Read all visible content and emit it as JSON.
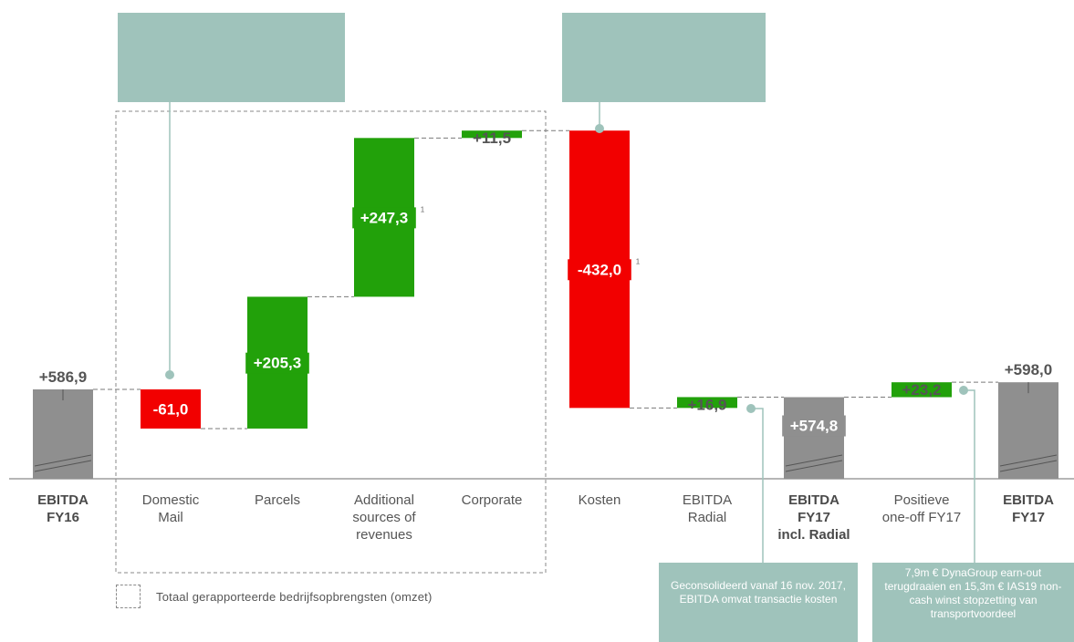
{
  "chart_data": {
    "type": "waterfall",
    "categories": [
      "EBITDA FY16",
      "Domestic Mail",
      "Parcels",
      "Additional sources of revenues",
      "Corporate",
      "Kosten",
      "EBITDA Radial",
      "EBITDA FY17 incl. Radial",
      "Positieve one-off FY17",
      "EBITDA FY17"
    ],
    "bars": [
      {
        "category": "EBITDA FY16",
        "label": "+586,9",
        "kind": "total",
        "start": 0,
        "end": 586.9
      },
      {
        "category": "Domestic Mail",
        "label": "-61,0",
        "kind": "decrease",
        "start": 586.9,
        "end": 525.9
      },
      {
        "category": "Parcels",
        "label": "+205,3",
        "kind": "increase",
        "start": 525.9,
        "end": 731.2
      },
      {
        "category": "Additional sources of revenues",
        "label": "+247,3",
        "footnote": "1",
        "kind": "increase",
        "start": 731.2,
        "end": 978.5
      },
      {
        "category": "Corporate",
        "label": "+11,5",
        "kind": "increase",
        "start": 978.5,
        "end": 990.0
      },
      {
        "category": "Kosten",
        "label": "-432,0",
        "footnote": "1",
        "kind": "decrease",
        "start": 990.0,
        "end": 558.0
      },
      {
        "category": "EBITDA Radial",
        "label": "+16,9",
        "kind": "increase",
        "start": 558.0,
        "end": 574.9
      },
      {
        "category": "EBITDA FY17 incl. Radial",
        "label": "+574,8",
        "kind": "total",
        "start": 0,
        "end": 574.8
      },
      {
        "category": "Positieve one-off FY17",
        "label": "+23,2",
        "kind": "increase",
        "start": 574.8,
        "end": 598.0
      },
      {
        "category": "EBITDA FY17",
        "label": "+598,0",
        "kind": "total",
        "start": 0,
        "end": 598.0
      }
    ],
    "colors": {
      "increase": "#22a10a",
      "decrease": "#f20000",
      "total": "#8f8f8f",
      "note": "#9fc3bb"
    }
  },
  "axis_labels": [
    {
      "lines": [
        "EBITDA",
        "FY16"
      ],
      "bold": true
    },
    {
      "lines": [
        "Domestic",
        "Mail"
      ],
      "bold": false
    },
    {
      "lines": [
        "Parcels"
      ],
      "bold": false
    },
    {
      "lines": [
        "Additional",
        "sources of",
        "revenues"
      ],
      "bold": false
    },
    {
      "lines": [
        "Corporate"
      ],
      "bold": false
    },
    {
      "lines": [
        "Kosten"
      ],
      "bold": false
    },
    {
      "lines": [
        "EBITDA",
        "Radial"
      ],
      "bold": false
    },
    {
      "lines": [
        "EBITDA",
        "FY17",
        "incl. Radial"
      ],
      "bold": true
    },
    {
      "lines": [
        "Positieve",
        "one-off FY17"
      ],
      "bold": false
    },
    {
      "lines": [
        "EBITDA",
        "FY17"
      ],
      "bold": true
    }
  ],
  "notes": {
    "radial": "Geconsolideerd vanaf 16 nov. 2017, EBITDA omvat transactie kosten",
    "oneoff": "7,9m € DynaGroup earn-out terugdraaien en 15,3m € IAS19 non-cash winst stopzetting van transportvoordeel"
  },
  "legend": {
    "text": "Totaal gerapporteerde bedrijfsopbrengsten (omzet)"
  }
}
